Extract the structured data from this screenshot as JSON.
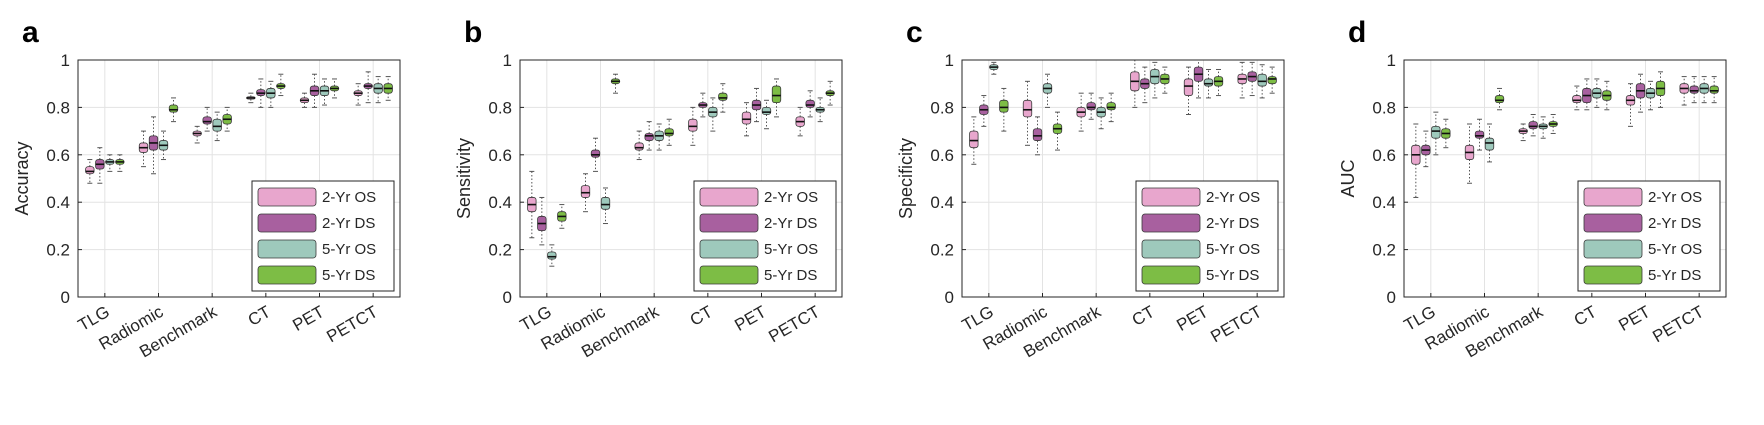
{
  "figure": {
    "series_colors": [
      "#e8a6cd",
      "#a8609f",
      "#9ec9bc",
      "#7dbd45"
    ],
    "series_names": [
      "2-Yr OS",
      "2-Yr DS",
      "5-Yr OS",
      "5-Yr DS"
    ]
  },
  "chart_data": [
    {
      "type": "box",
      "panel": "a",
      "ylabel": "Accuracy",
      "ylim": [
        0,
        1
      ],
      "yticks": [
        "0",
        "0.2",
        "0.4",
        "0.6",
        "0.8",
        "1"
      ],
      "categories": [
        "TLG",
        "Radiomic",
        "Benchmark",
        "CT",
        "PET",
        "PETCT"
      ],
      "grid": true,
      "legend": "bottom-right",
      "series": [
        {
          "name": "2-Yr OS",
          "median": [
            0.53,
            0.63,
            0.69,
            0.84,
            0.83,
            0.86
          ],
          "q1": [
            0.52,
            0.61,
            0.68,
            0.835,
            0.82,
            0.85
          ],
          "q3": [
            0.55,
            0.65,
            0.7,
            0.845,
            0.84,
            0.87
          ],
          "min": [
            0.48,
            0.55,
            0.65,
            0.82,
            0.8,
            0.81
          ],
          "max": [
            0.58,
            0.7,
            0.72,
            0.86,
            0.86,
            0.9
          ]
        },
        {
          "name": "2-Yr DS",
          "median": [
            0.56,
            0.65,
            0.74,
            0.86,
            0.87,
            0.89
          ],
          "q1": [
            0.54,
            0.62,
            0.73,
            0.85,
            0.85,
            0.88
          ],
          "q3": [
            0.58,
            0.68,
            0.76,
            0.875,
            0.89,
            0.9
          ],
          "min": [
            0.48,
            0.52,
            0.7,
            0.8,
            0.8,
            0.82
          ],
          "max": [
            0.63,
            0.76,
            0.8,
            0.92,
            0.94,
            0.95
          ]
        },
        {
          "name": "5-Yr OS",
          "median": [
            0.57,
            0.64,
            0.72,
            0.86,
            0.87,
            0.88
          ],
          "q1": [
            0.56,
            0.62,
            0.7,
            0.84,
            0.85,
            0.86
          ],
          "q3": [
            0.58,
            0.66,
            0.75,
            0.88,
            0.89,
            0.9
          ],
          "min": [
            0.53,
            0.58,
            0.66,
            0.8,
            0.81,
            0.82
          ],
          "max": [
            0.6,
            0.7,
            0.78,
            0.91,
            0.92,
            0.93
          ]
        },
        {
          "name": "5-Yr DS",
          "median": [
            0.57,
            0.79,
            0.75,
            0.89,
            0.88,
            0.88
          ],
          "q1": [
            0.56,
            0.78,
            0.73,
            0.88,
            0.87,
            0.86
          ],
          "q3": [
            0.58,
            0.81,
            0.77,
            0.9,
            0.89,
            0.9
          ],
          "min": [
            0.53,
            0.74,
            0.7,
            0.85,
            0.84,
            0.83
          ],
          "max": [
            0.6,
            0.84,
            0.8,
            0.94,
            0.92,
            0.93
          ]
        }
      ]
    },
    {
      "type": "box",
      "panel": "b",
      "ylabel": "Sensitivity",
      "ylim": [
        0,
        1
      ],
      "yticks": [
        "0",
        "0.2",
        "0.4",
        "0.6",
        "0.8",
        "1"
      ],
      "categories": [
        "TLG",
        "Radiomic",
        "Benchmark",
        "CT",
        "PET",
        "PETCT"
      ],
      "grid": true,
      "legend": "bottom-right",
      "series": [
        {
          "name": "2-Yr OS",
          "median": [
            0.39,
            0.44,
            0.63,
            0.72,
            0.75,
            0.74
          ],
          "q1": [
            0.36,
            0.42,
            0.62,
            0.7,
            0.73,
            0.72
          ],
          "q3": [
            0.42,
            0.47,
            0.65,
            0.75,
            0.78,
            0.76
          ],
          "min": [
            0.25,
            0.36,
            0.58,
            0.64,
            0.68,
            0.68
          ],
          "max": [
            0.53,
            0.52,
            0.7,
            0.8,
            0.82,
            0.8
          ]
        },
        {
          "name": "2-Yr DS",
          "median": [
            0.31,
            0.6,
            0.68,
            0.81,
            0.81,
            0.81
          ],
          "q1": [
            0.28,
            0.59,
            0.66,
            0.8,
            0.79,
            0.8
          ],
          "q3": [
            0.34,
            0.62,
            0.69,
            0.82,
            0.83,
            0.83
          ],
          "min": [
            0.22,
            0.53,
            0.62,
            0.76,
            0.74,
            0.76
          ],
          "max": [
            0.42,
            0.67,
            0.74,
            0.86,
            0.88,
            0.87
          ]
        },
        {
          "name": "5-Yr OS",
          "median": [
            0.17,
            0.39,
            0.68,
            0.78,
            0.78,
            0.79
          ],
          "q1": [
            0.16,
            0.37,
            0.66,
            0.76,
            0.77,
            0.78
          ],
          "q3": [
            0.19,
            0.42,
            0.7,
            0.8,
            0.8,
            0.8
          ],
          "min": [
            0.13,
            0.31,
            0.62,
            0.7,
            0.71,
            0.74
          ],
          "max": [
            0.22,
            0.46,
            0.73,
            0.84,
            0.83,
            0.84
          ]
        },
        {
          "name": "5-Yr DS",
          "median": [
            0.34,
            0.91,
            0.69,
            0.84,
            0.85,
            0.86
          ],
          "q1": [
            0.32,
            0.9,
            0.68,
            0.83,
            0.82,
            0.85
          ],
          "q3": [
            0.36,
            0.92,
            0.71,
            0.86,
            0.89,
            0.87
          ],
          "min": [
            0.29,
            0.86,
            0.64,
            0.78,
            0.76,
            0.81
          ],
          "max": [
            0.39,
            0.94,
            0.75,
            0.9,
            0.92,
            0.91
          ]
        }
      ]
    },
    {
      "type": "box",
      "panel": "c",
      "ylabel": "Specificity",
      "ylim": [
        0,
        1
      ],
      "yticks": [
        "0",
        "0.2",
        "0.4",
        "0.6",
        "0.8",
        "1"
      ],
      "categories": [
        "TLG",
        "Radiomic",
        "Benchmark",
        "CT",
        "PET",
        "PETCT"
      ],
      "grid": true,
      "legend": "bottom-right",
      "series": [
        {
          "name": "2-Yr OS",
          "median": [
            0.66,
            0.79,
            0.78,
            0.91,
            0.89,
            0.92
          ],
          "q1": [
            0.63,
            0.76,
            0.76,
            0.87,
            0.85,
            0.9
          ],
          "q3": [
            0.7,
            0.83,
            0.8,
            0.95,
            0.92,
            0.94
          ],
          "min": [
            0.56,
            0.64,
            0.7,
            0.8,
            0.77,
            0.84
          ],
          "max": [
            0.76,
            0.91,
            0.86,
            1.0,
            0.97,
            0.99
          ]
        },
        {
          "name": "2-Yr DS",
          "median": [
            0.79,
            0.68,
            0.8,
            0.9,
            0.94,
            0.93
          ],
          "q1": [
            0.77,
            0.66,
            0.79,
            0.88,
            0.91,
            0.91
          ],
          "q3": [
            0.81,
            0.71,
            0.82,
            0.92,
            0.97,
            0.95
          ],
          "min": [
            0.72,
            0.6,
            0.75,
            0.82,
            0.84,
            0.85
          ],
          "max": [
            0.85,
            0.76,
            0.86,
            0.97,
            1.0,
            0.99
          ]
        },
        {
          "name": "5-Yr OS",
          "median": [
            0.97,
            0.88,
            0.78,
            0.93,
            0.9,
            0.91
          ],
          "q1": [
            0.96,
            0.86,
            0.76,
            0.9,
            0.89,
            0.89
          ],
          "q3": [
            0.98,
            0.9,
            0.8,
            0.96,
            0.92,
            0.94
          ],
          "min": [
            0.94,
            0.8,
            0.71,
            0.84,
            0.84,
            0.84
          ],
          "max": [
            0.99,
            0.94,
            0.84,
            0.99,
            0.96,
            0.98
          ]
        },
        {
          "name": "5-Yr DS",
          "median": [
            0.8,
            0.71,
            0.8,
            0.92,
            0.91,
            0.92
          ],
          "q1": [
            0.78,
            0.69,
            0.79,
            0.9,
            0.89,
            0.9
          ],
          "q3": [
            0.83,
            0.73,
            0.82,
            0.94,
            0.93,
            0.93
          ],
          "min": [
            0.7,
            0.62,
            0.74,
            0.86,
            0.85,
            0.86
          ],
          "max": [
            0.88,
            0.78,
            0.86,
            0.97,
            0.96,
            0.97
          ]
        }
      ]
    },
    {
      "type": "box",
      "panel": "d",
      "ylabel": "AUC",
      "ylim": [
        0,
        1
      ],
      "yticks": [
        "0",
        "0.2",
        "0.4",
        "0.6",
        "0.8",
        "1"
      ],
      "categories": [
        "TLG",
        "Radiomic",
        "Benchmark",
        "CT",
        "PET",
        "PETCT"
      ],
      "grid": true,
      "legend": "bottom-right",
      "series": [
        {
          "name": "2-Yr OS",
          "median": [
            0.6,
            0.61,
            0.7,
            0.83,
            0.83,
            0.88
          ],
          "q1": [
            0.56,
            0.58,
            0.69,
            0.82,
            0.81,
            0.86
          ],
          "q3": [
            0.64,
            0.64,
            0.71,
            0.85,
            0.85,
            0.9
          ],
          "min": [
            0.42,
            0.48,
            0.66,
            0.79,
            0.72,
            0.81
          ],
          "max": [
            0.73,
            0.73,
            0.73,
            0.89,
            0.9,
            0.93
          ]
        },
        {
          "name": "2-Yr DS",
          "median": [
            0.62,
            0.68,
            0.72,
            0.85,
            0.87,
            0.87
          ],
          "q1": [
            0.6,
            0.67,
            0.71,
            0.82,
            0.84,
            0.86
          ],
          "q3": [
            0.64,
            0.7,
            0.74,
            0.88,
            0.9,
            0.89
          ],
          "min": [
            0.55,
            0.62,
            0.68,
            0.79,
            0.78,
            0.82
          ],
          "max": [
            0.7,
            0.75,
            0.77,
            0.92,
            0.94,
            0.93
          ]
        },
        {
          "name": "5-Yr OS",
          "median": [
            0.7,
            0.65,
            0.72,
            0.86,
            0.86,
            0.88
          ],
          "q1": [
            0.67,
            0.62,
            0.71,
            0.84,
            0.84,
            0.86
          ],
          "q3": [
            0.72,
            0.67,
            0.73,
            0.88,
            0.88,
            0.9
          ],
          "min": [
            0.6,
            0.57,
            0.67,
            0.8,
            0.79,
            0.82
          ],
          "max": [
            0.78,
            0.73,
            0.76,
            0.92,
            0.91,
            0.93
          ]
        },
        {
          "name": "5-Yr DS",
          "median": [
            0.69,
            0.83,
            0.73,
            0.85,
            0.88,
            0.87
          ],
          "q1": [
            0.67,
            0.82,
            0.72,
            0.83,
            0.85,
            0.86
          ],
          "q3": [
            0.71,
            0.85,
            0.74,
            0.87,
            0.91,
            0.89
          ],
          "min": [
            0.63,
            0.79,
            0.69,
            0.79,
            0.8,
            0.82
          ],
          "max": [
            0.75,
            0.88,
            0.77,
            0.91,
            0.95,
            0.93
          ]
        }
      ]
    }
  ]
}
